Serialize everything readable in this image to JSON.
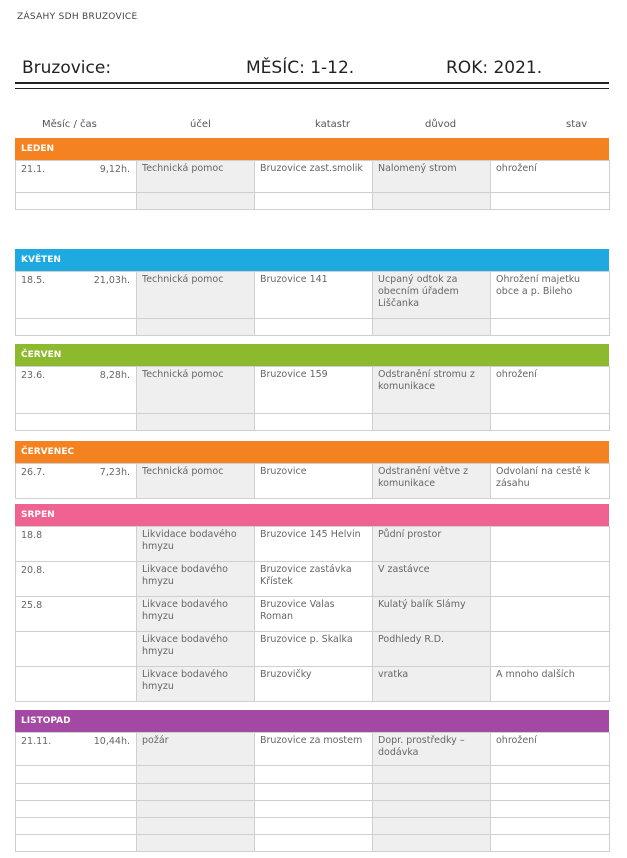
{
  "document": {
    "title": "ZÁSAHY SDH BRUZOVICE"
  },
  "header": {
    "location": "Bruzovice:",
    "month": "MĚSÍC: 1-12.",
    "year": "ROK: 2021."
  },
  "columns": [
    "Měsíc / čas",
    "účel",
    "katastr",
    "důvod",
    "stav"
  ],
  "colors": {
    "orange": "#f58220",
    "cyan": "#1ea9e1",
    "green": "#8db92e",
    "pink": "#f06292",
    "purple": "#a349a4",
    "cell_gray": "#efefef"
  },
  "sections": [
    {
      "name": "LEDEN",
      "color": "#f58220",
      "rows": [
        {
          "date": "21.1.",
          "time": "9,12h.",
          "purpose": "Technická pomoc",
          "area": "Bruzovice zast.smolik",
          "reason": "Nalomený strom",
          "state": "ohrožení"
        },
        {
          "date": "",
          "time": "",
          "purpose": "",
          "area": "",
          "reason": "",
          "state": ""
        }
      ]
    },
    {
      "name": "KVĚTEN",
      "color": "#1ea9e1",
      "rows": [
        {
          "date": "18.5.",
          "time": "21,03h.",
          "purpose": "Technická pomoc",
          "area": "Bruzovice 141",
          "reason": "Ucpaný odtok za obecním úřadem Liščanka",
          "state": "Ohrožení majetku obce a p. Bileho"
        },
        {
          "date": "",
          "time": "",
          "purpose": "",
          "area": "",
          "reason": "",
          "state": ""
        }
      ]
    },
    {
      "name": "ČERVEN",
      "color": "#8db92e",
      "rows": [
        {
          "date": "23.6.",
          "time": "8,28h.",
          "purpose": "Technická pomoc",
          "area": "Bruzovice 159",
          "reason": "Odstranění stromu z komunikace",
          "state": "ohrožení"
        },
        {
          "date": "",
          "time": "",
          "purpose": "",
          "area": "",
          "reason": "",
          "state": ""
        }
      ]
    },
    {
      "name": "ČERVENEC",
      "color": "#f58220",
      "rows": [
        {
          "date": "26.7.",
          "time": "7,23h.",
          "purpose": "Technická pomoc",
          "area": "Bruzovice",
          "reason": "Odstranění větve z komunikace",
          "state": "Odvolaní na cestě k zásahu"
        }
      ]
    },
    {
      "name": "SRPEN",
      "color": "#f06292",
      "rows": [
        {
          "date": "18.8",
          "time": "",
          "purpose": "Likvidace bodavého hmyzu",
          "area": "Bruzovice 145 Helvin",
          "reason": "Půdní prostor",
          "state": ""
        },
        {
          "date": "20.8.",
          "time": "",
          "purpose": "Likvace bodavého hmyzu",
          "area": "Bruzovice zastávka Křístek",
          "reason": "V zastávce",
          "state": ""
        },
        {
          "date": "25.8",
          "time": "",
          "purpose": "Likvace bodavého hmyzu",
          "area": "Bruzovice Valas Roman",
          "reason": "Kulatý balík Slámy",
          "state": ""
        },
        {
          "date": "",
          "time": "",
          "purpose": "Likvace bodavého hmyzu",
          "area": "Bruzovice p. Skalka",
          "reason": "Podhledy R.D.",
          "state": ""
        },
        {
          "date": "",
          "time": "",
          "purpose": "Likvace bodavého hmyzu",
          "area": "Bruzovičky",
          "reason": "vratka",
          "state": "A mnoho dalších"
        }
      ]
    },
    {
      "name": "LISTOPAD",
      "color": "#a349a4",
      "rows": [
        {
          "date": "21.11.",
          "time": "10,44h.",
          "purpose": "požár",
          "area": "Bruzovice za mostem",
          "reason": "Dopr. prostředky – dodávka",
          "state": "ohrožení"
        },
        {
          "date": "",
          "time": "",
          "purpose": "",
          "area": "",
          "reason": "",
          "state": ""
        },
        {
          "date": "",
          "time": "",
          "purpose": "",
          "area": "",
          "reason": "",
          "state": ""
        },
        {
          "date": "",
          "time": "",
          "purpose": "",
          "area": "",
          "reason": "",
          "state": ""
        },
        {
          "date": "",
          "time": "",
          "purpose": "",
          "area": "",
          "reason": "",
          "state": ""
        },
        {
          "date": "",
          "time": "",
          "purpose": "",
          "area": "",
          "reason": "",
          "state": ""
        }
      ]
    }
  ]
}
